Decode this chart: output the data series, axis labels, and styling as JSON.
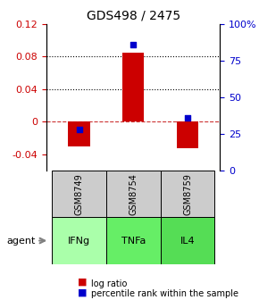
{
  "title": "GDS498 / 2475",
  "categories": [
    "IFNg",
    "TNFa",
    "IL4"
  ],
  "gsm_labels": [
    "GSM8749",
    "GSM8754",
    "GSM8759"
  ],
  "log_ratios": [
    -0.03,
    0.085,
    -0.032
  ],
  "percentile_ranks": [
    0.28,
    0.86,
    0.36
  ],
  "ylim_left": [
    -0.06,
    0.12
  ],
  "ylim_right": [
    0.0,
    1.0
  ],
  "yticks_left": [
    -0.04,
    0.0,
    0.04,
    0.08,
    0.12
  ],
  "yticks_right": [
    0.0,
    0.25,
    0.5,
    0.75,
    1.0
  ],
  "ytick_labels_left": [
    "-0.04",
    "0",
    "0.04",
    "0.08",
    "0.12"
  ],
  "ytick_labels_right": [
    "0",
    "25",
    "50",
    "75",
    "100%"
  ],
  "hlines_dotted": [
    0.04,
    0.08
  ],
  "hline_dashed": 0.0,
  "bar_color": "#cc0000",
  "dot_color": "#0000cc",
  "cell_color_gsm": "#cccccc",
  "cell_color_agent_light": "#aaffaa",
  "cell_color_agent_mid": "#66dd66",
  "cell_color_agent_dark": "#44cc44",
  "agent_colors": [
    "#aaffaa",
    "#66ee66",
    "#55dd55"
  ],
  "legend_bar_color": "#cc0000",
  "legend_dot_color": "#0000cc",
  "bar_width": 0.4,
  "title_color": "#000000",
  "left_tick_color": "#cc0000",
  "right_tick_color": "#0000cc"
}
